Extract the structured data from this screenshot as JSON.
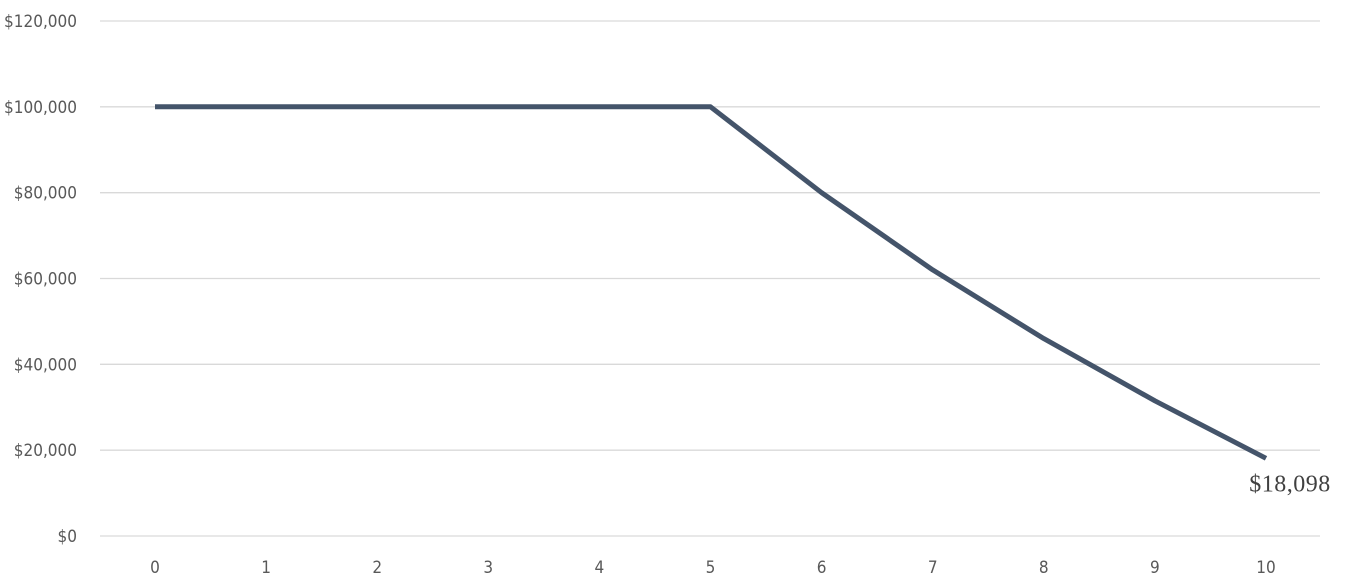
{
  "chart_data": {
    "type": "line",
    "title": "",
    "xlabel": "",
    "ylabel": "",
    "x": [
      0,
      1,
      2,
      3,
      4,
      5,
      6,
      7,
      8,
      9,
      10
    ],
    "x_tick_labels": [
      "0",
      "1",
      "2",
      "3",
      "4",
      "5",
      "6",
      "7",
      "8",
      "9",
      "10"
    ],
    "y_tick_labels": [
      "$0",
      "$20,000",
      "$40,000",
      "$60,000",
      "$80,000",
      "$100,000",
      "$120,000"
    ],
    "y_ticks": [
      0,
      20000,
      40000,
      60000,
      80000,
      100000,
      120000
    ],
    "ylim": [
      0,
      120000
    ],
    "grid": true,
    "legend": "none",
    "series": [
      {
        "values": [
          100000,
          100000,
          100000,
          100000,
          100000,
          100000,
          80000,
          62000,
          46000,
          31500,
          18098
        ],
        "color": "#44546a"
      }
    ],
    "annotations": [
      {
        "series": 0,
        "point_index": 10,
        "text": "$18,098"
      }
    ]
  }
}
